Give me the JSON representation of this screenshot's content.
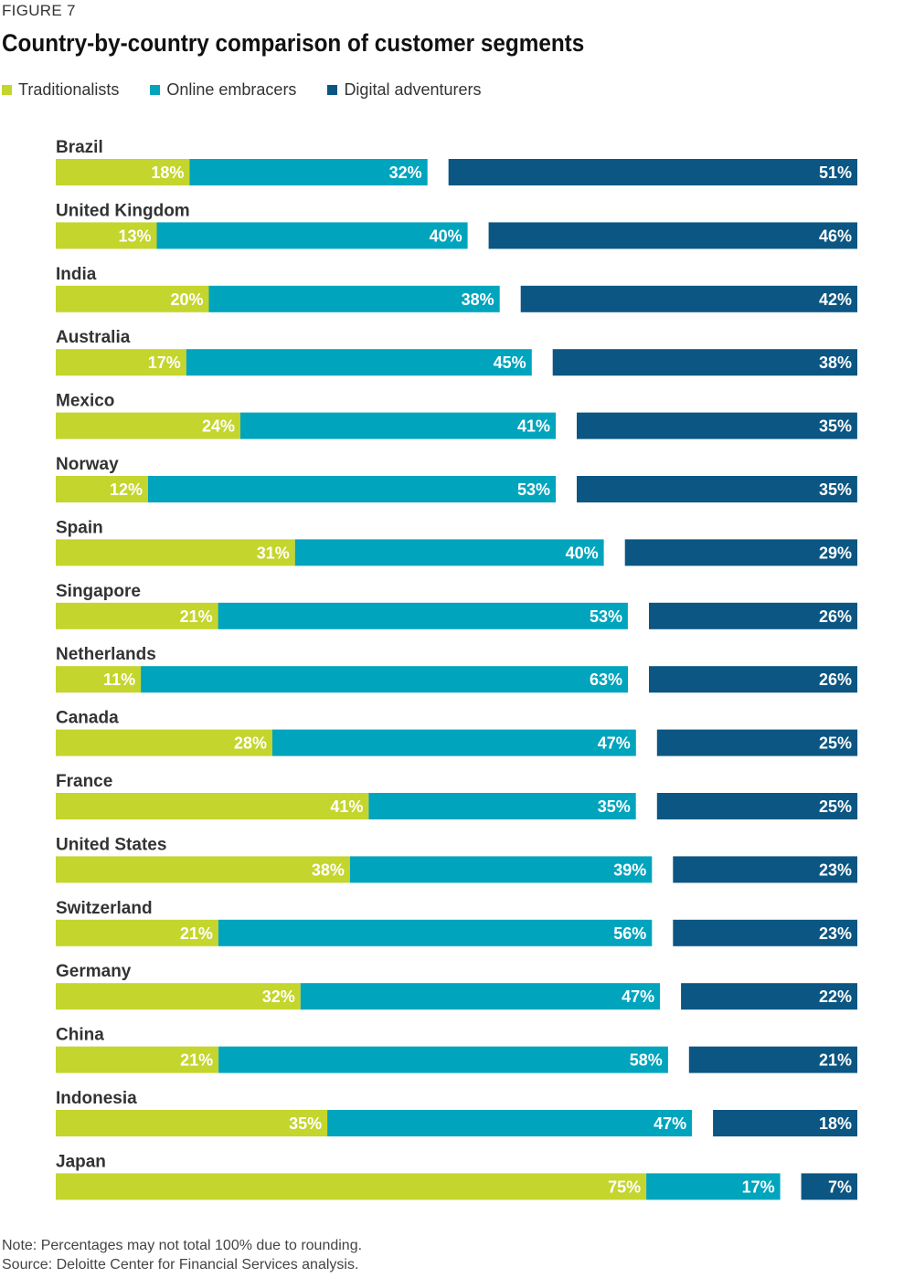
{
  "figure_label": "FIGURE 7",
  "colors": {
    "traditionalists": "#c4d52d",
    "online_embracers": "#00a4bd",
    "digital_adventurers": "#0b5683"
  },
  "chart_data": {
    "type": "bar",
    "orientation": "horizontal-stacked",
    "title": "Country-by-country comparison of customer segments",
    "xlabel": "",
    "ylabel": "",
    "legend_position": "top-left",
    "categories": [
      "Brazil",
      "United Kingdom",
      "India",
      "Australia",
      "Mexico",
      "Norway",
      "Spain",
      "Singapore",
      "Netherlands",
      "Canada",
      "France",
      "United States",
      "Switzerland",
      "Germany",
      "China",
      "Indonesia",
      "Japan"
    ],
    "series": [
      {
        "name": "Traditionalists",
        "values": [
          18,
          13,
          20,
          17,
          24,
          12,
          31,
          21,
          11,
          28,
          41,
          38,
          21,
          32,
          21,
          35,
          75
        ],
        "labels": [
          "18%",
          "13%",
          "20%",
          "17%",
          "24%",
          "12%",
          "31%",
          "21%",
          "11%",
          "28%",
          "41%",
          "38%",
          "21%",
          "32%",
          "21%",
          "35%",
          "75%"
        ]
      },
      {
        "name": "Online embracers",
        "values": [
          32,
          40,
          38,
          45,
          41,
          53,
          40,
          53,
          63,
          47,
          35,
          39,
          56,
          47,
          58,
          47,
          17
        ],
        "labels": [
          "32%",
          "40%",
          "38%",
          "45%",
          "41%",
          "53%",
          "40%",
          "53%",
          "63%",
          "47%",
          "35%",
          "39%",
          "56%",
          "47%",
          "58%",
          "47%",
          "17%"
        ]
      },
      {
        "name": "Digital adventurers",
        "values": [
          51,
          46,
          42,
          38,
          35,
          35,
          29,
          26,
          26,
          25,
          25,
          23,
          23,
          22,
          21,
          18,
          7
        ],
        "labels": [
          "51%",
          "46%",
          "42%",
          "38%",
          "35%",
          "35%",
          "29%",
          "26%",
          "26%",
          "25%",
          "25%",
          "23%",
          "23%",
          "22%",
          "21%",
          "18%",
          "7%"
        ]
      }
    ]
  },
  "notes": {
    "note": "Note: Percentages may not total 100% due to rounding.",
    "source": "Source: Deloitte Center for Financial Services analysis."
  }
}
